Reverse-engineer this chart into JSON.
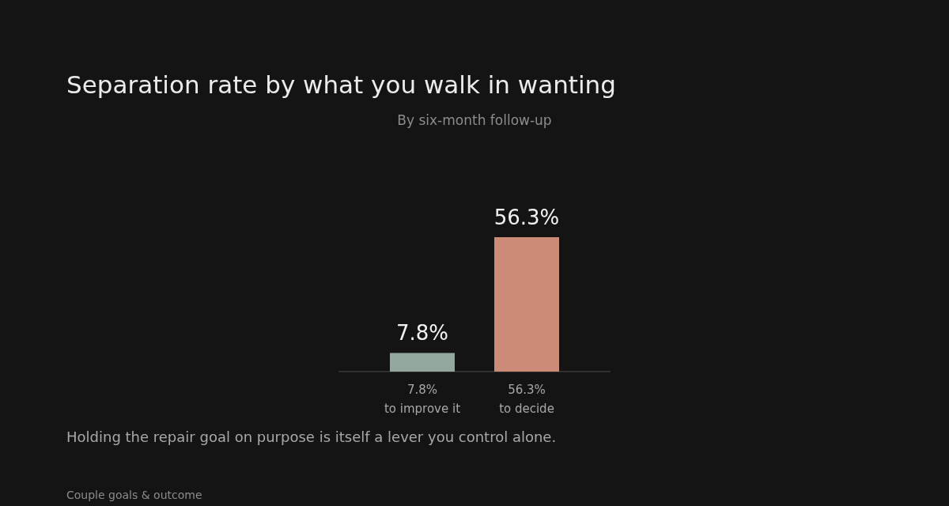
{
  "chart_data": {
    "type": "bar",
    "title": "Separation rate by what you walk in wanting",
    "subtitle": "By six-month follow-up",
    "categories": [
      "7.8%\nto improve it",
      "56.3%\nto decide"
    ],
    "values": [
      7.8,
      56.3
    ],
    "colors": [
      "#93a89d",
      "#cc8b77"
    ],
    "value_labels": [
      "7.8%",
      "56.3%"
    ],
    "annotations": [
      "Holding the repair goal on purpose is itself a lever you control alone.",
      "Couple goals & outcome"
    ]
  }
}
